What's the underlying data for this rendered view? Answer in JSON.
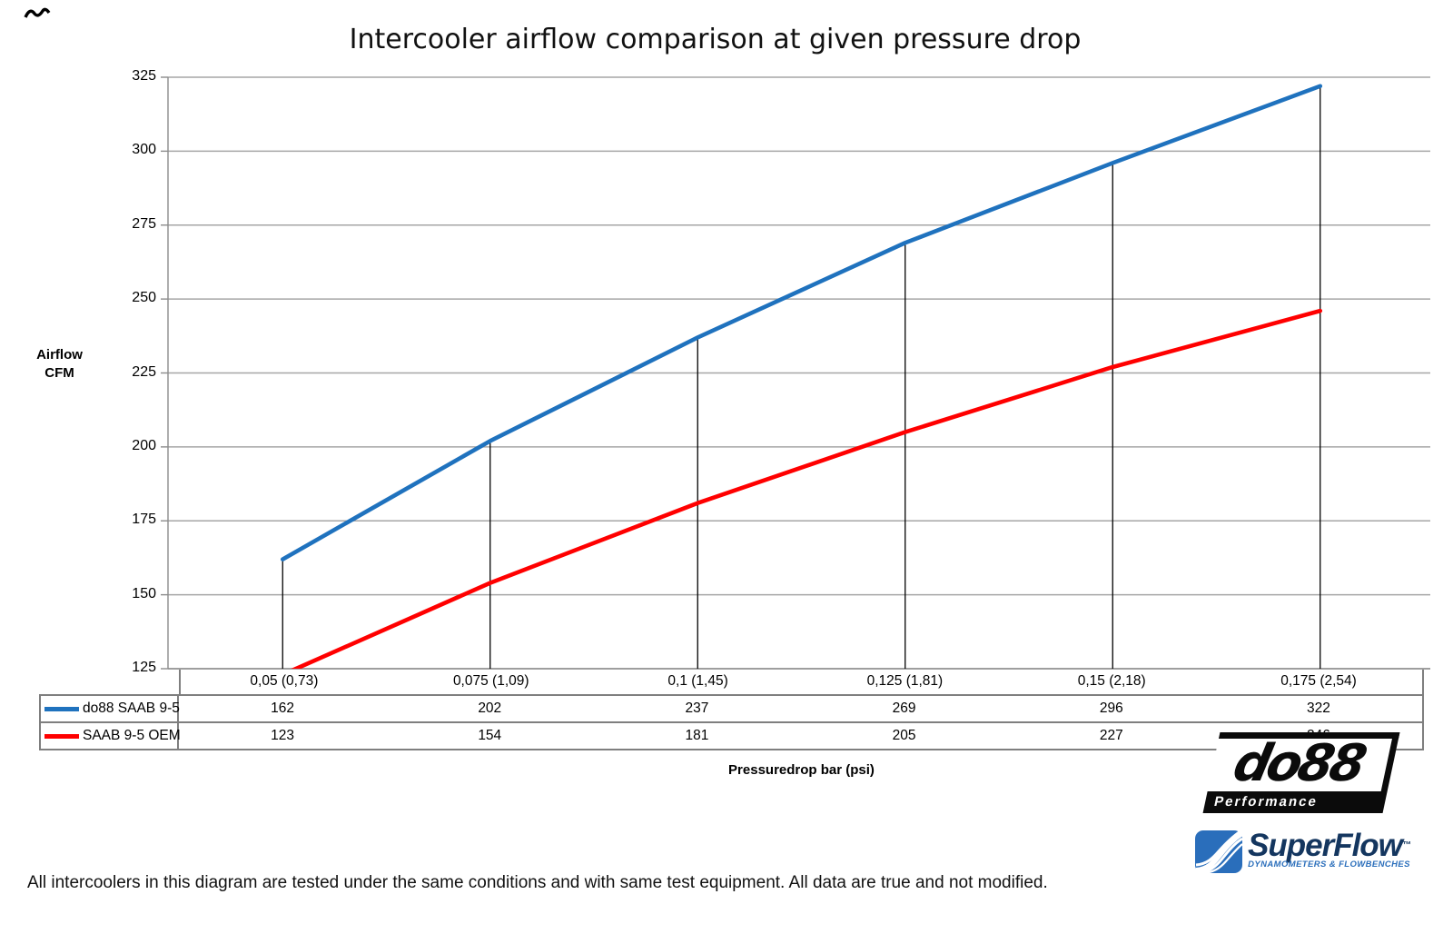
{
  "chart_data": {
    "type": "line",
    "title": "Intercooler airflow comparison at given pressure drop",
    "ylabel_lines": [
      "Airflow",
      "CFM"
    ],
    "xlabel": "Pressuredrop bar (psi)",
    "categories": [
      "0,05 (0,73)",
      "0,075 (1,09)",
      "0,1 (1,45)",
      "0,125 (1,81)",
      "0,15 (2,18)",
      "0,175 (2,54)"
    ],
    "series": [
      {
        "name": "do88 SAAB 9-5",
        "color": "#1F72BE",
        "values": [
          162,
          202,
          237,
          269,
          296,
          322
        ]
      },
      {
        "name": "SAAB 9-5 OEM",
        "color": "#FF0000",
        "values": [
          123,
          154,
          181,
          205,
          227,
          246
        ]
      }
    ],
    "ylim": [
      125,
      325
    ],
    "ytick_step": 25,
    "grid": true,
    "droplines": true,
    "legend_position": "data-table-left"
  },
  "footer": "All intercoolers in this diagram are tested under the same conditions and with same test equipment. All data are true and not modified.",
  "logos": {
    "do88": {
      "text": "do88",
      "subtext": "Performance"
    },
    "superflow": {
      "text": "SuperFlow",
      "tm": "™",
      "subtext": "DYNAMOMETERS & FLOWBENCHES"
    }
  },
  "colors": {
    "grid": "#A6A6A6",
    "axis": "#8C8C8C",
    "dropline": "#000000",
    "table_border": "#7F7F7F",
    "do88_blue": "#1F72BE",
    "oem_red": "#FF0000"
  }
}
